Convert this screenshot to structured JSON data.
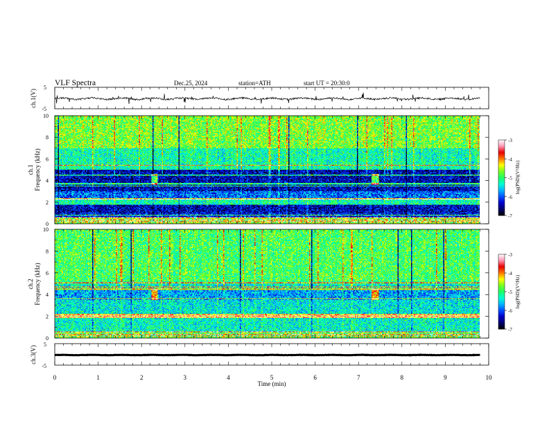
{
  "header": {
    "title": "VLF Spectra",
    "date": "Dec.25, 2024",
    "station": "station=ATH",
    "start": "start UT = 20:30:0"
  },
  "colors": {
    "ch1_trace": "#000000",
    "ch3_trace": "#000000",
    "colormap": [
      "#000000",
      "#00006e",
      "#0000c8",
      "#0050ff",
      "#00b4ff",
      "#00ffd2",
      "#1eff64",
      "#78ff1e",
      "#ffff00",
      "#ff7800",
      "#e60000",
      "#ff96b4",
      "#ffffff"
    ]
  },
  "chart_data": [
    {
      "id": "ch1-waveform",
      "type": "line",
      "ylabel": "ch.1(V)",
      "ylim": [
        -5,
        5
      ],
      "yticks": [
        "5",
        "-5"
      ],
      "xlim": [
        0,
        10
      ],
      "baseline": -0.3,
      "amplitude": 0.8,
      "spikes": true
    },
    {
      "id": "ch1-spectrogram",
      "type": "heatmap",
      "ylabel": "Frequency (kHz)",
      "channel_label": "ch.1",
      "ylim": [
        0,
        10
      ],
      "yticks": [
        "0",
        "2",
        "4",
        "6",
        "8",
        "10"
      ],
      "xlim": [
        0,
        10
      ],
      "data_end_min": 9.8,
      "colorbar": {
        "label": "log(PSD)(V²/Hz)",
        "range": [
          -7,
          -3
        ],
        "ticks": [
          "-3",
          "-4",
          "-5",
          "-6",
          "-7"
        ]
      },
      "bands": [
        {
          "from": 0.0,
          "to": 0.6,
          "level": -4.6
        },
        {
          "from": 0.6,
          "to": 1.0,
          "level": -6.2
        },
        {
          "from": 1.0,
          "to": 1.8,
          "level": -6.4
        },
        {
          "from": 1.8,
          "to": 2.2,
          "level": -5.2
        },
        {
          "from": 2.2,
          "to": 2.4,
          "level": -4.3
        },
        {
          "from": 2.4,
          "to": 3.0,
          "level": -5.9
        },
        {
          "from": 3.0,
          "to": 5.0,
          "level": -6.4
        },
        {
          "from": 5.0,
          "to": 7.0,
          "level": -5.2
        },
        {
          "from": 7.0,
          "to": 10.0,
          "level": -4.7
        }
      ],
      "lines_khz": [
        0.2,
        0.35,
        0.55,
        0.8,
        2.3,
        3.5,
        3.7,
        4.5,
        5.4
      ],
      "blobs": [
        {
          "t": 2.3,
          "f": 4.1
        },
        {
          "t": 7.4,
          "f": 4.1
        }
      ]
    },
    {
      "id": "ch2-spectrogram",
      "type": "heatmap",
      "ylabel": "Frequency (kHz)",
      "channel_label": "ch.2",
      "ylim": [
        0,
        10
      ],
      "yticks": [
        "0",
        "2",
        "4",
        "6",
        "8",
        "10"
      ],
      "xlim": [
        0,
        10
      ],
      "data_end_min": 9.8,
      "colorbar": {
        "label": "log(PSD)(V²/Hz)",
        "range": [
          -7,
          -3
        ],
        "ticks": [
          "-3",
          "-4",
          "-5",
          "-6",
          "-7"
        ]
      },
      "bands": [
        {
          "from": 0.0,
          "to": 0.6,
          "level": -4.8
        },
        {
          "from": 0.6,
          "to": 1.8,
          "level": -5.3
        },
        {
          "from": 1.8,
          "to": 2.2,
          "level": -4.2
        },
        {
          "from": 2.2,
          "to": 3.5,
          "level": -5.4
        },
        {
          "from": 3.5,
          "to": 4.8,
          "level": -5.7
        },
        {
          "from": 4.8,
          "to": 5.2,
          "level": -5.3
        },
        {
          "from": 5.2,
          "to": 10.0,
          "level": -4.9
        }
      ],
      "lines_khz": [
        0.2,
        0.35,
        0.6,
        1.95,
        2.1,
        3.6,
        4.5,
        4.7,
        5.1
      ],
      "blobs": [
        {
          "t": 2.3,
          "f": 4.0
        },
        {
          "t": 7.4,
          "f": 4.0
        }
      ]
    },
    {
      "id": "ch3-waveform",
      "type": "line",
      "ylabel": "ch.3(V)",
      "ylim": [
        -5,
        5
      ],
      "yticks": [
        "5",
        "-5"
      ],
      "xlim": [
        0,
        10
      ],
      "baseline": -0.3,
      "amplitude": 0.15,
      "spikes": false
    },
    {
      "id": "time-axis",
      "type": "axis",
      "xlabel": "Time (min)",
      "xlim": [
        0,
        10
      ],
      "xticks": [
        "0",
        "1",
        "2",
        "3",
        "4",
        "5",
        "6",
        "7",
        "8",
        "9",
        "10"
      ]
    }
  ]
}
